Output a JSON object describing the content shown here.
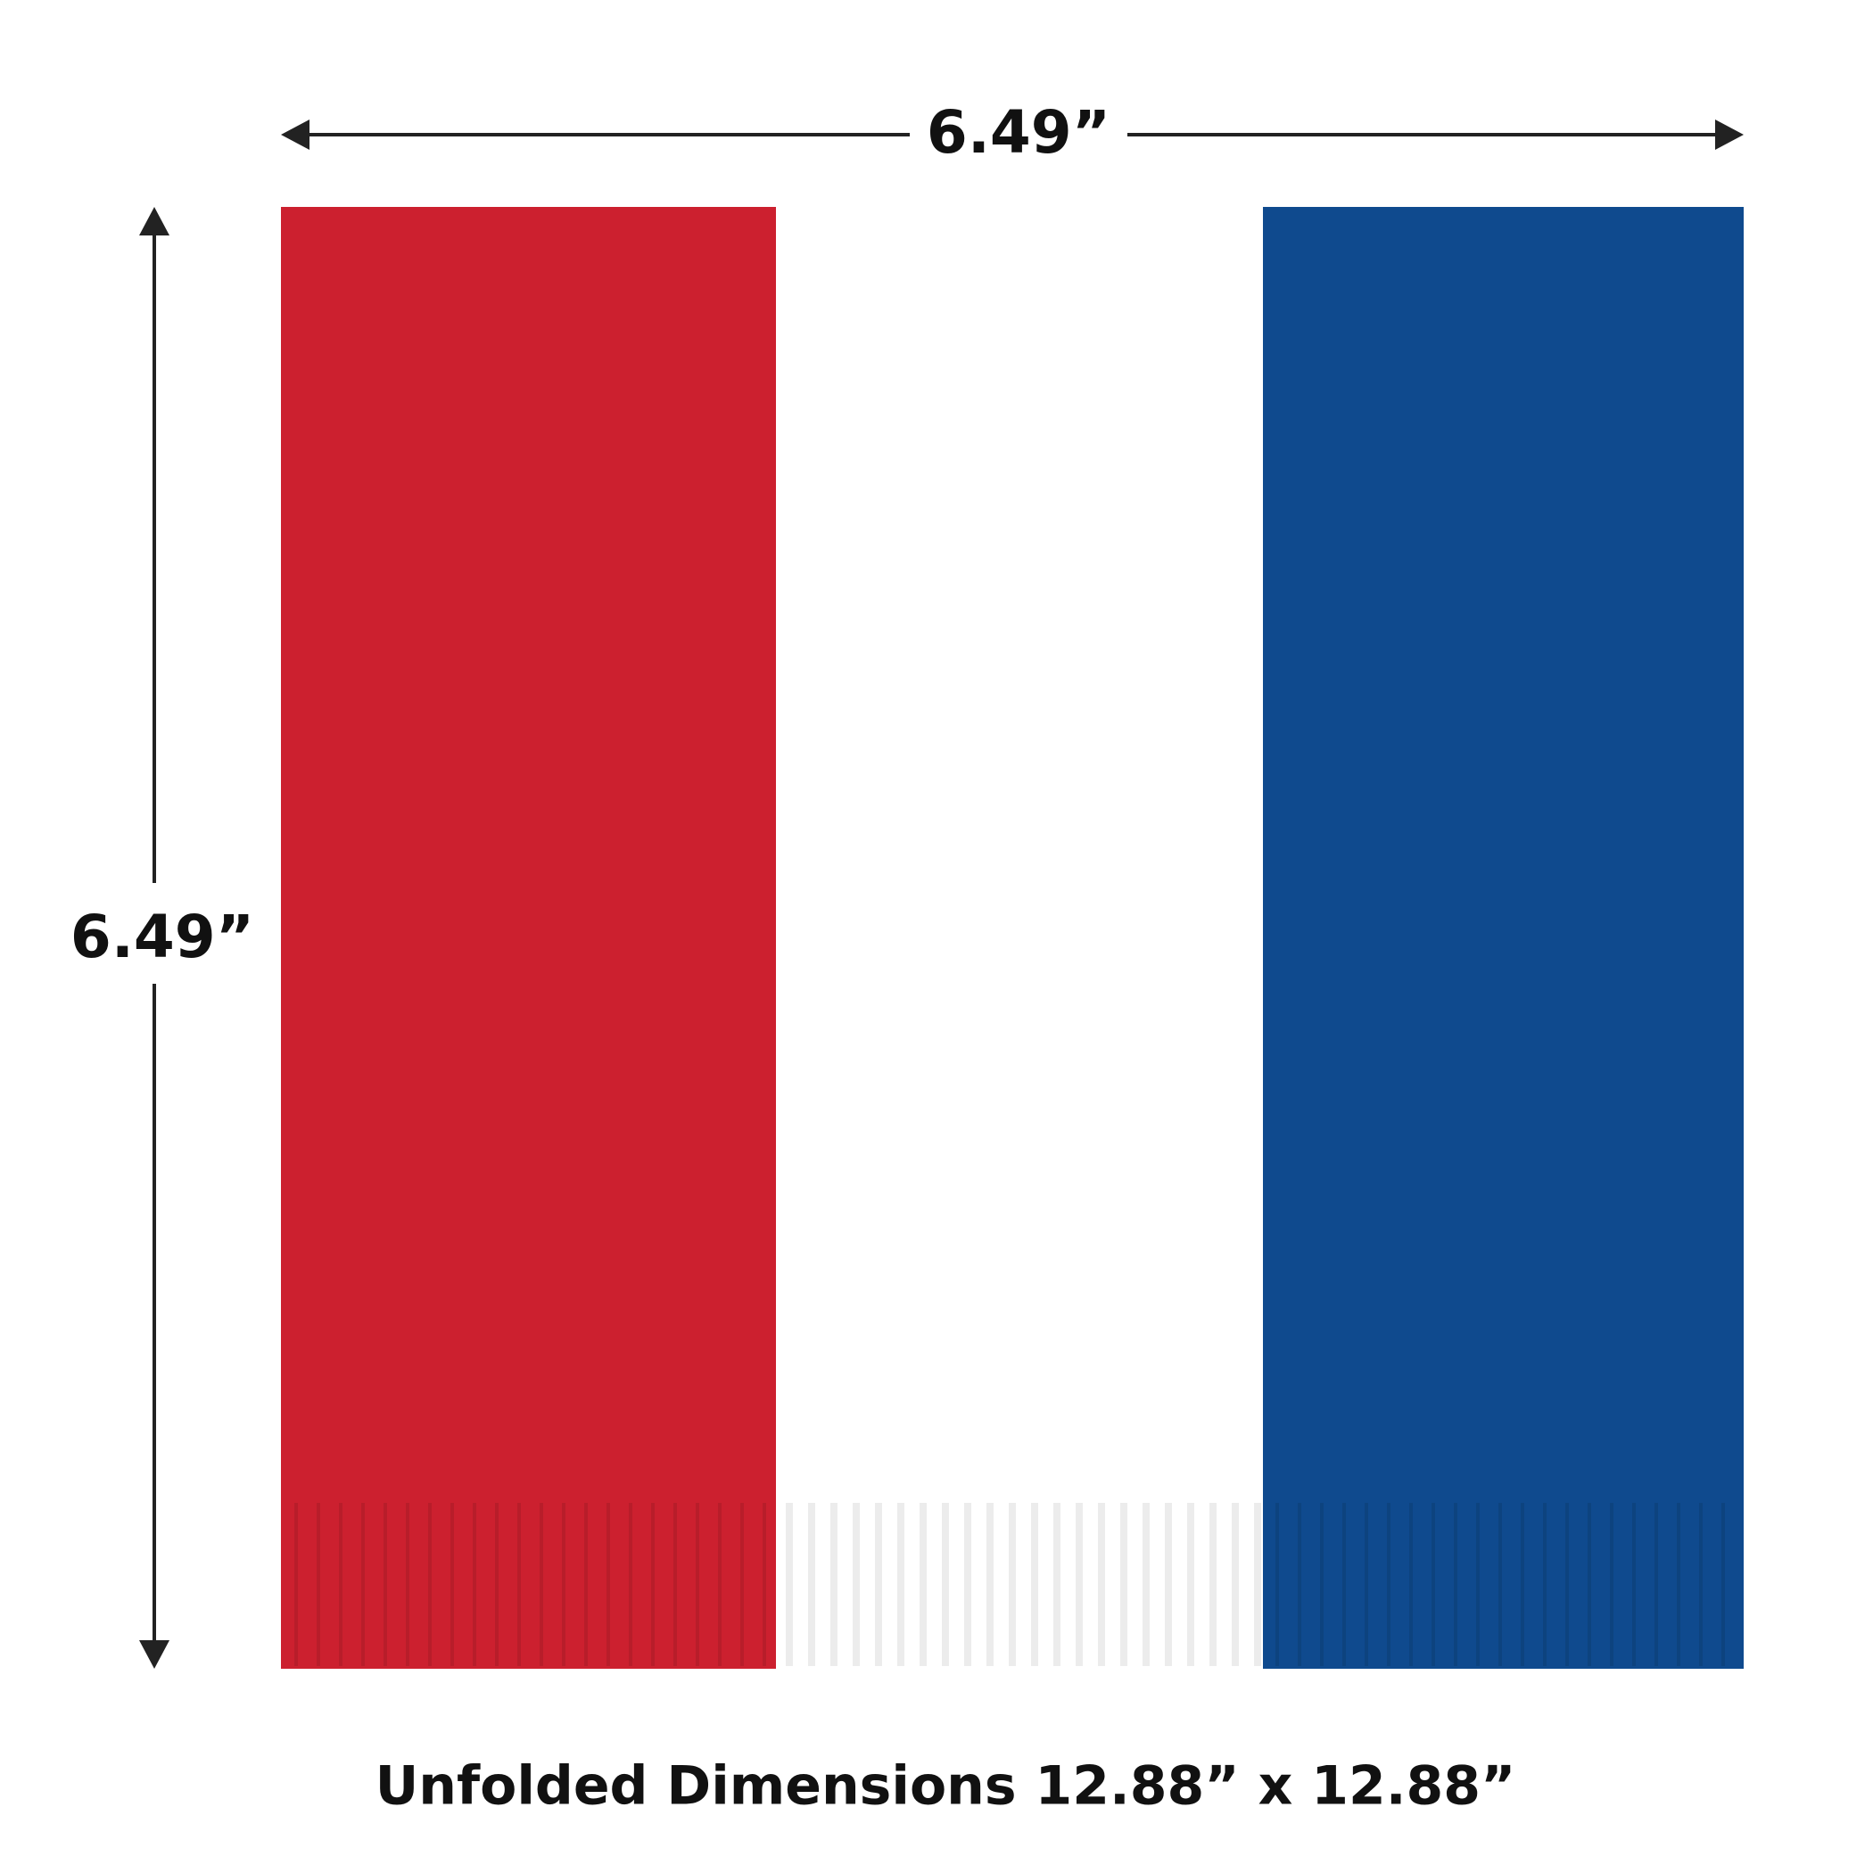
{
  "dimensions": {
    "width_label": "6.49”",
    "height_label": "6.49”"
  },
  "caption": "Unfolded Dimensions 12.88” x 12.88”"
}
